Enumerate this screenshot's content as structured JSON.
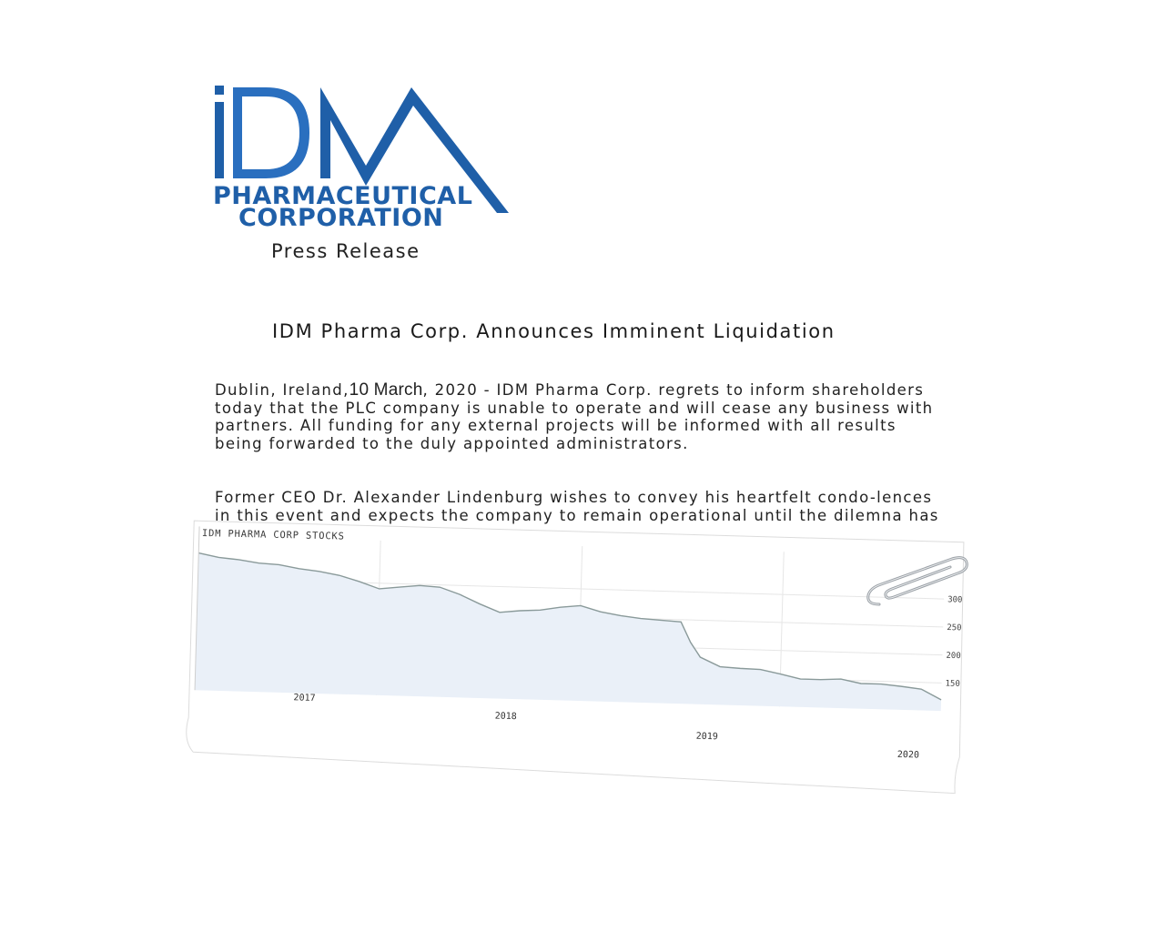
{
  "logo": {
    "letters": "iDM",
    "line1": "PHARMACEUTICAL",
    "line2": "CORPORATION",
    "color": "#1f5fa8"
  },
  "press_label": "Press Release",
  "headline": "IDM Pharma Corp. Announces Imminent Liquidation",
  "para1": {
    "prefix": "Dublin, Ireland,",
    "date": "10 March",
    "rest": ", 2020 - IDM Pharma Corp. regrets to inform shareholders today that the PLC company is unable to operate and will cease any business with partners. All funding for any external projects will be informed with all results being forwarded to the duly appointed administrators."
  },
  "para2": "Former CEO Dr. Alexander Lindenburg wishes to convey his heartfelt condo-lences in this event and expects the company to remain operational until the dilemna has been overcome.",
  "chart_data": {
    "type": "area",
    "title": "IDM PHARMA CORP STOCKS",
    "x_ticks": [
      "2017",
      "2018",
      "2019",
      "2020"
    ],
    "y_ticks": [
      300,
      250,
      200,
      150
    ],
    "ylim": [
      100,
      360
    ],
    "series": [
      {
        "name": "",
        "x": [
          2016.6,
          2016.7,
          2016.8,
          2016.9,
          2017.0,
          2017.1,
          2017.2,
          2017.3,
          2017.4,
          2017.5,
          2017.6,
          2017.7,
          2017.8,
          2017.9,
          2018.0,
          2018.1,
          2018.2,
          2018.3,
          2018.4,
          2018.5,
          2018.6,
          2018.7,
          2018.8,
          2018.9,
          2019.0,
          2019.05,
          2019.1,
          2019.2,
          2019.3,
          2019.4,
          2019.5,
          2019.6,
          2019.7,
          2019.8,
          2019.9,
          2020.0,
          2020.1,
          2020.2,
          2020.3
        ],
        "values": [
          345,
          338,
          335,
          330,
          328,
          322,
          318,
          312,
          302,
          290,
          294,
          298,
          296,
          284,
          268,
          254,
          258,
          260,
          266,
          270,
          260,
          254,
          250,
          248,
          246,
          210,
          184,
          168,
          166,
          165,
          158,
          150,
          150,
          152,
          145,
          145,
          142,
          138,
          120
        ]
      }
    ],
    "grid": true,
    "fill_color": "#eaf0f8",
    "line_color": "#8a9a9a"
  }
}
